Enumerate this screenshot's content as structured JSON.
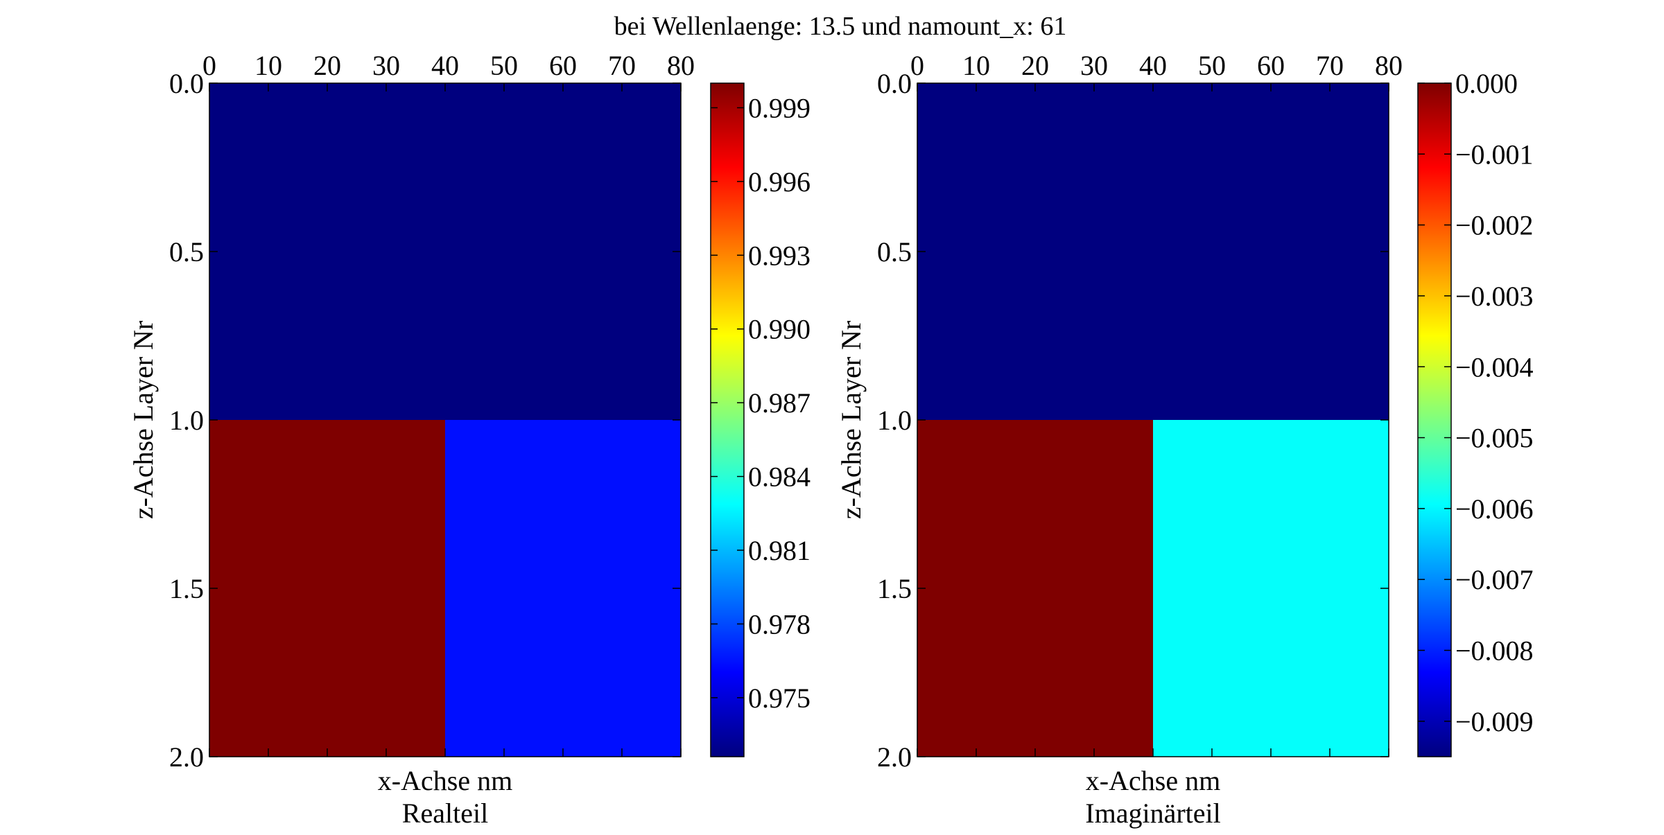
{
  "title": "bei Wellenlaenge: 13.5 und namount_x: 61",
  "colormap": [
    "#00007f",
    "#0000ff",
    "#007fff",
    "#00ffff",
    "#7fff7f",
    "#ffff00",
    "#ff7f00",
    "#ff0000",
    "#7f0000"
  ],
  "chart_data": [
    {
      "type": "heatmap",
      "subtitle": "Realteil",
      "xlabel": "x-Achse nm",
      "ylabel": "z-Achse Layer Nr",
      "xlim": [
        0,
        80
      ],
      "ylim": [
        0,
        2
      ],
      "xticks": [
        0,
        10,
        20,
        30,
        40,
        50,
        60,
        70,
        80
      ],
      "xtick_labels": [
        "0",
        "10",
        "20",
        "30",
        "40",
        "50",
        "60",
        "70",
        "80"
      ],
      "yticks": [
        0.0,
        0.5,
        1.0,
        1.5,
        2.0
      ],
      "ytick_labels": [
        "0.0",
        "0.5",
        "1.0",
        "1.5",
        "2.0"
      ],
      "y_inverted": true,
      "x_axis_position": "top",
      "cells": [
        {
          "x0": 0,
          "x1": 80,
          "y0": 0,
          "y1": 1,
          "value": 0.9726
        },
        {
          "x0": 0,
          "x1": 40,
          "y0": 1,
          "y1": 2,
          "value": 1.0
        },
        {
          "x0": 40,
          "x1": 80,
          "y0": 1,
          "y1": 2,
          "value": 0.9764
        }
      ],
      "colorbar": {
        "vmin": 0.9726,
        "vmax": 1.0,
        "ticks": [
          0.975,
          0.978,
          0.981,
          0.984,
          0.987,
          0.99,
          0.993,
          0.996,
          0.999
        ],
        "tick_labels": [
          "0.975",
          "0.978",
          "0.981",
          "0.984",
          "0.987",
          "0.990",
          "0.993",
          "0.996",
          "0.999"
        ]
      }
    },
    {
      "type": "heatmap",
      "subtitle": "Imaginärteil",
      "xlabel": "x-Achse nm",
      "ylabel": "z-Achse Layer Nr",
      "xlim": [
        0,
        80
      ],
      "ylim": [
        0,
        2
      ],
      "xticks": [
        0,
        10,
        20,
        30,
        40,
        50,
        60,
        70,
        80
      ],
      "xtick_labels": [
        "0",
        "10",
        "20",
        "30",
        "40",
        "50",
        "60",
        "70",
        "80"
      ],
      "yticks": [
        0.0,
        0.5,
        1.0,
        1.5,
        2.0
      ],
      "ytick_labels": [
        "0.0",
        "0.5",
        "1.0",
        "1.5",
        "2.0"
      ],
      "y_inverted": true,
      "x_axis_position": "top",
      "cells": [
        {
          "x0": 0,
          "x1": 80,
          "y0": 0,
          "y1": 1,
          "value": -0.0095
        },
        {
          "x0": 0,
          "x1": 40,
          "y0": 1,
          "y1": 2,
          "value": 0.0
        },
        {
          "x0": 40,
          "x1": 80,
          "y0": 1,
          "y1": 2,
          "value": -0.0059
        }
      ],
      "colorbar": {
        "vmin": -0.0095,
        "vmax": 0.0,
        "ticks": [
          -0.009,
          -0.008,
          -0.007,
          -0.006,
          -0.005,
          -0.004,
          -0.003,
          -0.002,
          -0.001,
          0.0
        ],
        "tick_labels": [
          "−0.009",
          "−0.008",
          "−0.007",
          "−0.006",
          "−0.005",
          "−0.004",
          "−0.003",
          "−0.002",
          "−0.001",
          "0.000"
        ]
      }
    }
  ]
}
